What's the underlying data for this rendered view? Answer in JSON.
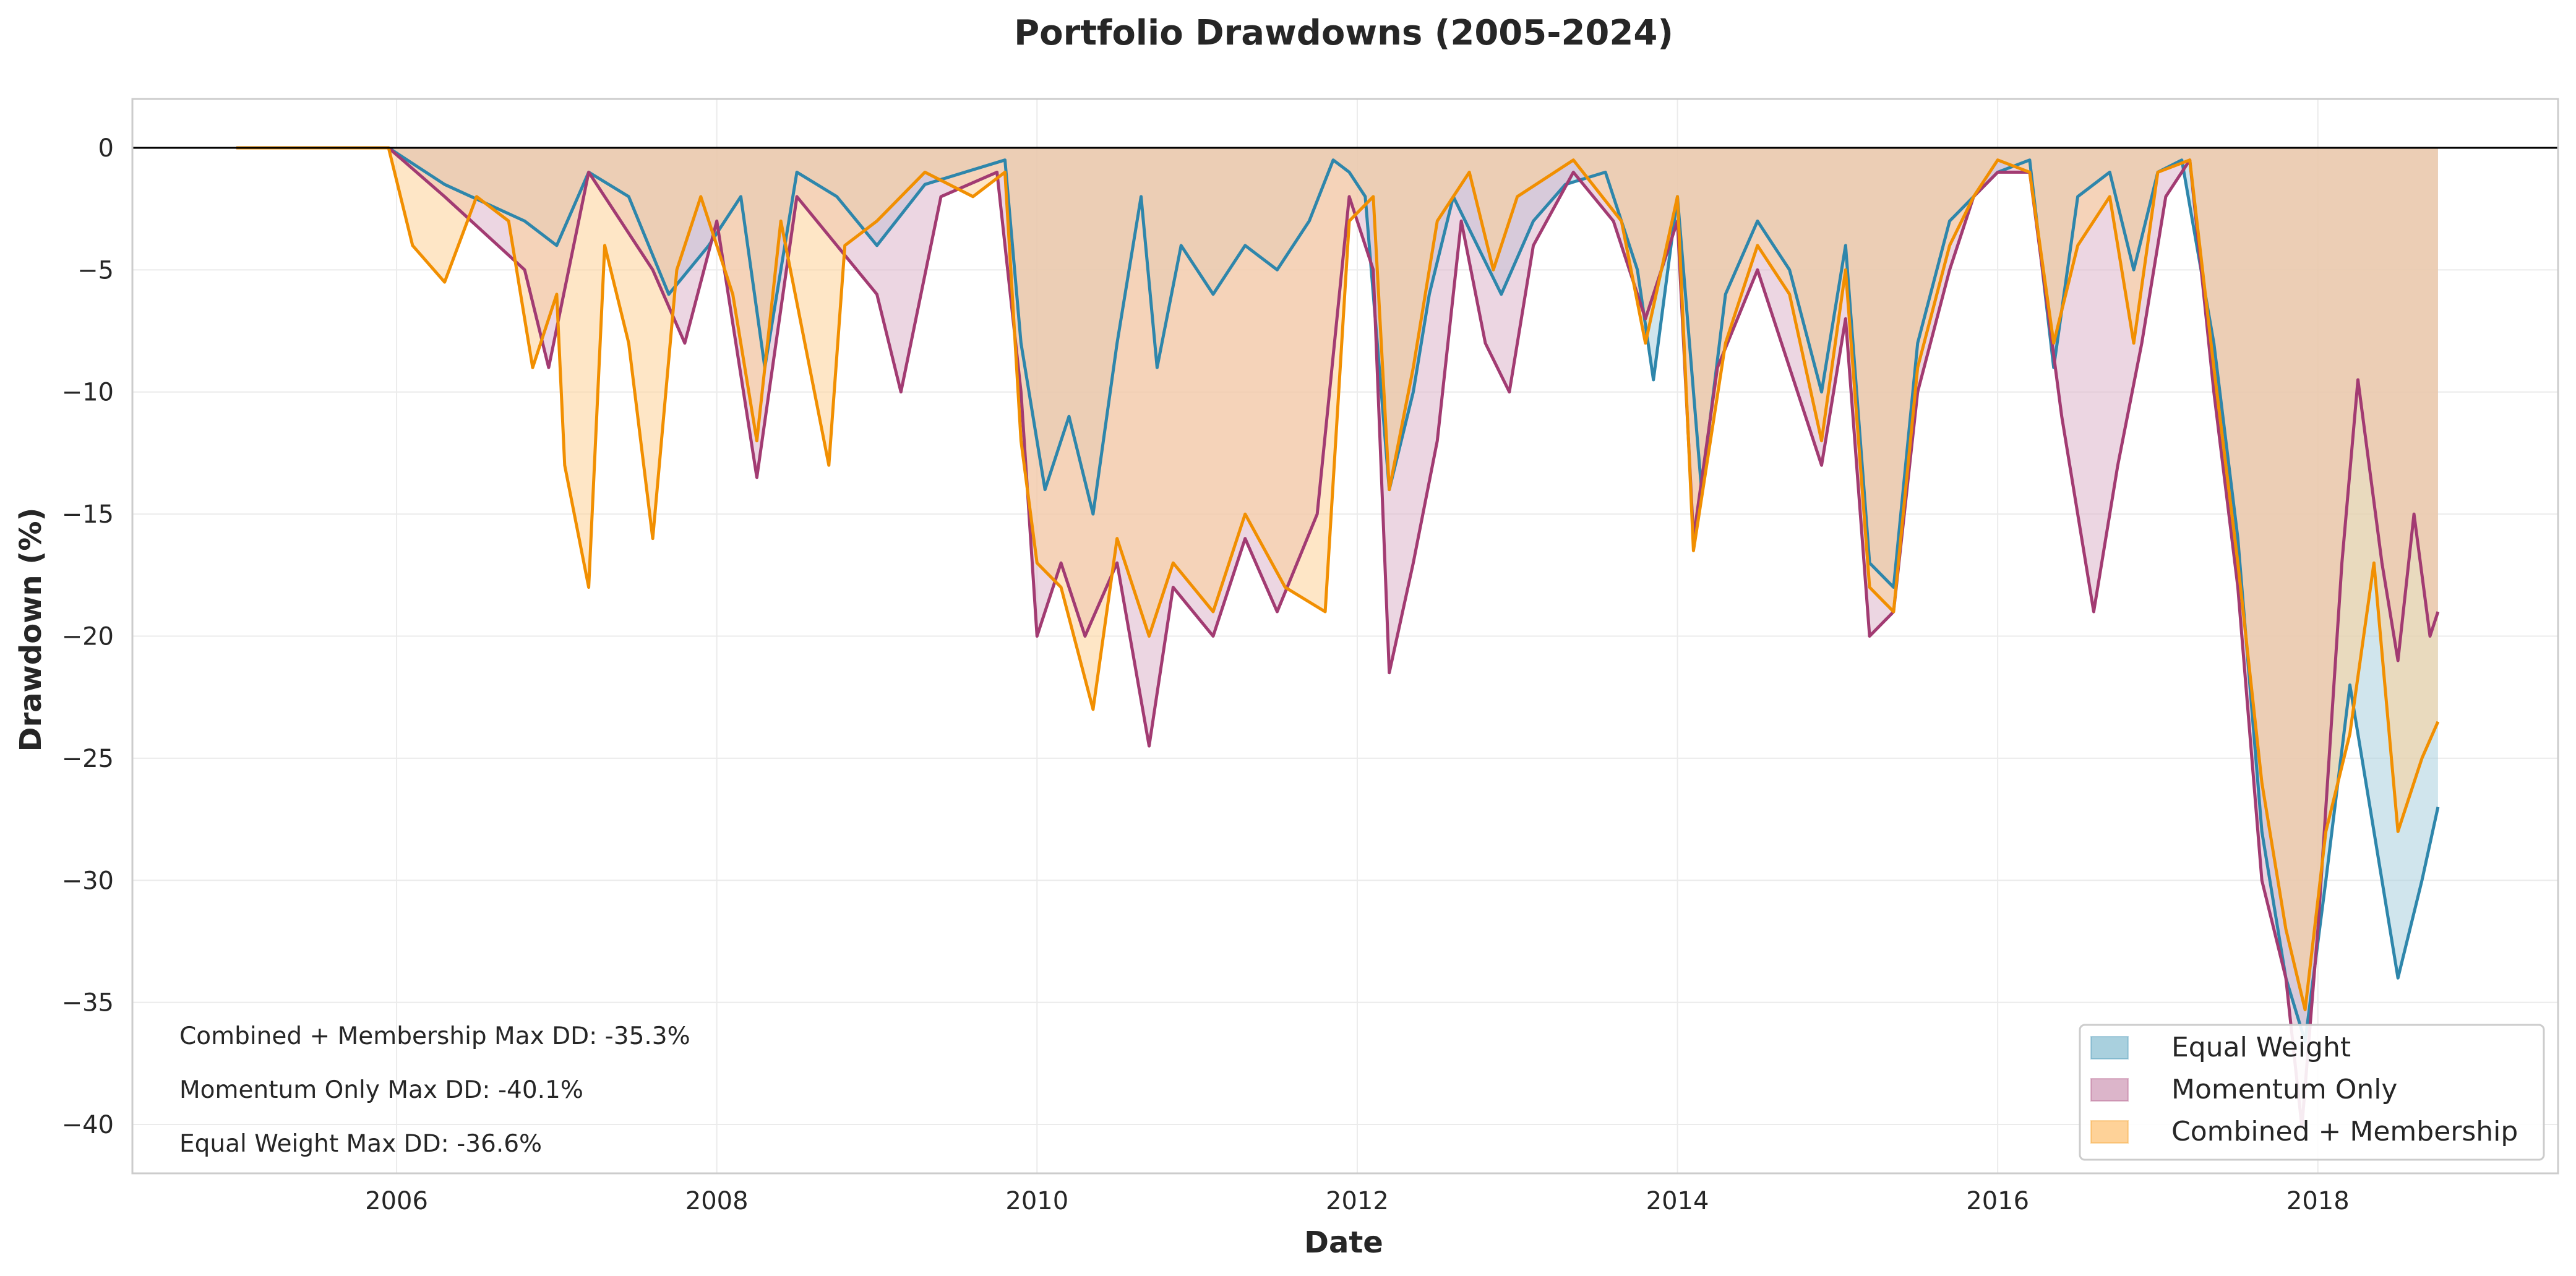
{
  "chart_data": {
    "type": "area",
    "title": "Portfolio Drawdowns (2005-2024)",
    "xlabel": "Date",
    "ylabel": "Drawdown (%)",
    "xlim": [
      2004.35,
      2019.5
    ],
    "ylim": [
      -42,
      2
    ],
    "x_ticks": [
      2006,
      2008,
      2010,
      2012,
      2014,
      2016,
      2018
    ],
    "y_ticks": [
      0,
      -5,
      -10,
      -15,
      -20,
      -25,
      -30,
      -35,
      -40
    ],
    "grid": true,
    "legend_position": "lower-right",
    "series": [
      {
        "name": "Equal Weight",
        "color": "#2e86ab",
        "fill": "#a9d0de",
        "points": [
          [
            2005.0,
            0
          ],
          [
            2005.95,
            0
          ],
          [
            2006.3,
            -1.5
          ],
          [
            2006.8,
            -3
          ],
          [
            2007.0,
            -4
          ],
          [
            2007.2,
            -1
          ],
          [
            2007.45,
            -2
          ],
          [
            2007.7,
            -6
          ],
          [
            2007.95,
            -4
          ],
          [
            2008.15,
            -2
          ],
          [
            2008.3,
            -9
          ],
          [
            2008.5,
            -1
          ],
          [
            2008.75,
            -2
          ],
          [
            2009.0,
            -4
          ],
          [
            2009.3,
            -1.5
          ],
          [
            2009.55,
            -1
          ],
          [
            2009.8,
            -0.5
          ],
          [
            2009.9,
            -8
          ],
          [
            2010.05,
            -14
          ],
          [
            2010.2,
            -11
          ],
          [
            2010.35,
            -15
          ],
          [
            2010.5,
            -8
          ],
          [
            2010.65,
            -2
          ],
          [
            2010.75,
            -9
          ],
          [
            2010.9,
            -4
          ],
          [
            2011.1,
            -6
          ],
          [
            2011.3,
            -4
          ],
          [
            2011.5,
            -5
          ],
          [
            2011.7,
            -3
          ],
          [
            2011.85,
            -0.5
          ],
          [
            2011.95,
            -1
          ],
          [
            2012.05,
            -2
          ],
          [
            2012.2,
            -14
          ],
          [
            2012.35,
            -10
          ],
          [
            2012.45,
            -6
          ],
          [
            2012.6,
            -2
          ],
          [
            2012.75,
            -4
          ],
          [
            2012.9,
            -6
          ],
          [
            2013.1,
            -3
          ],
          [
            2013.3,
            -1.5
          ],
          [
            2013.55,
            -1
          ],
          [
            2013.75,
            -5
          ],
          [
            2013.85,
            -9.5
          ],
          [
            2014.0,
            -2
          ],
          [
            2014.15,
            -14
          ],
          [
            2014.3,
            -6
          ],
          [
            2014.5,
            -3
          ],
          [
            2014.7,
            -5
          ],
          [
            2014.9,
            -10
          ],
          [
            2015.05,
            -4
          ],
          [
            2015.2,
            -17
          ],
          [
            2015.35,
            -18
          ],
          [
            2015.5,
            -8
          ],
          [
            2015.7,
            -3
          ],
          [
            2015.85,
            -2
          ],
          [
            2016.0,
            -1
          ],
          [
            2016.2,
            -0.5
          ],
          [
            2016.35,
            -9
          ],
          [
            2016.5,
            -2
          ],
          [
            2016.7,
            -1
          ],
          [
            2016.85,
            -5
          ],
          [
            2017.0,
            -1
          ],
          [
            2017.15,
            -0.5
          ],
          [
            2017.35,
            -8
          ],
          [
            2017.5,
            -16
          ],
          [
            2017.65,
            -28
          ],
          [
            2017.8,
            -34
          ],
          [
            2017.92,
            -36.6
          ],
          [
            2018.05,
            -30
          ],
          [
            2018.2,
            -22
          ],
          [
            2018.35,
            -28
          ],
          [
            2018.5,
            -34
          ],
          [
            2018.65,
            -30
          ],
          [
            2018.75,
            -27
          ]
        ]
      },
      {
        "name": "Momentum Only",
        "color": "#a23b72",
        "fill": "#dcb5ca",
        "points": [
          [
            2005.0,
            0
          ],
          [
            2005.95,
            0
          ],
          [
            2006.3,
            -2
          ],
          [
            2006.8,
            -5
          ],
          [
            2006.95,
            -9
          ],
          [
            2007.2,
            -1
          ],
          [
            2007.4,
            -3
          ],
          [
            2007.6,
            -5
          ],
          [
            2007.8,
            -8
          ],
          [
            2008.0,
            -3
          ],
          [
            2008.25,
            -13.5
          ],
          [
            2008.5,
            -2
          ],
          [
            2008.75,
            -4
          ],
          [
            2009.0,
            -6
          ],
          [
            2009.15,
            -10
          ],
          [
            2009.4,
            -2
          ],
          [
            2009.75,
            -1
          ],
          [
            2009.9,
            -10
          ],
          [
            2010.0,
            -20
          ],
          [
            2010.15,
            -17
          ],
          [
            2010.3,
            -20
          ],
          [
            2010.5,
            -17
          ],
          [
            2010.7,
            -24.5
          ],
          [
            2010.85,
            -18
          ],
          [
            2011.1,
            -20
          ],
          [
            2011.3,
            -16
          ],
          [
            2011.5,
            -19
          ],
          [
            2011.75,
            -15
          ],
          [
            2011.95,
            -2
          ],
          [
            2012.1,
            -5
          ],
          [
            2012.2,
            -21.5
          ],
          [
            2012.35,
            -17
          ],
          [
            2012.5,
            -12
          ],
          [
            2012.65,
            -3
          ],
          [
            2012.8,
            -8
          ],
          [
            2012.95,
            -10
          ],
          [
            2013.1,
            -4
          ],
          [
            2013.35,
            -1
          ],
          [
            2013.6,
            -3
          ],
          [
            2013.8,
            -7
          ],
          [
            2014.0,
            -3
          ],
          [
            2014.1,
            -16
          ],
          [
            2014.25,
            -9
          ],
          [
            2014.5,
            -5
          ],
          [
            2014.7,
            -9
          ],
          [
            2014.9,
            -13
          ],
          [
            2015.05,
            -7
          ],
          [
            2015.2,
            -20
          ],
          [
            2015.35,
            -19
          ],
          [
            2015.5,
            -10
          ],
          [
            2015.7,
            -5
          ],
          [
            2015.85,
            -2
          ],
          [
            2016.0,
            -1
          ],
          [
            2016.2,
            -1
          ],
          [
            2016.4,
            -11
          ],
          [
            2016.6,
            -19
          ],
          [
            2016.75,
            -13
          ],
          [
            2016.9,
            -8
          ],
          [
            2017.05,
            -2
          ],
          [
            2017.2,
            -0.5
          ],
          [
            2017.35,
            -10
          ],
          [
            2017.5,
            -18
          ],
          [
            2017.65,
            -30
          ],
          [
            2017.8,
            -34
          ],
          [
            2017.9,
            -40.1
          ],
          [
            2018.0,
            -32
          ],
          [
            2018.15,
            -17
          ],
          [
            2018.25,
            -9.5
          ],
          [
            2018.4,
            -17
          ],
          [
            2018.5,
            -21
          ],
          [
            2018.6,
            -15
          ],
          [
            2018.7,
            -20
          ],
          [
            2018.75,
            -19
          ]
        ]
      },
      {
        "name": "Combined + Membership",
        "color": "#f18f01",
        "fill": "#fed298",
        "points": [
          [
            2005.0,
            0
          ],
          [
            2005.95,
            0
          ],
          [
            2006.1,
            -4
          ],
          [
            2006.3,
            -5.5
          ],
          [
            2006.5,
            -2
          ],
          [
            2006.7,
            -3
          ],
          [
            2006.85,
            -9
          ],
          [
            2007.0,
            -6
          ],
          [
            2007.05,
            -13
          ],
          [
            2007.2,
            -18
          ],
          [
            2007.3,
            -4
          ],
          [
            2007.45,
            -8
          ],
          [
            2007.6,
            -16
          ],
          [
            2007.75,
            -5
          ],
          [
            2007.9,
            -2
          ],
          [
            2008.1,
            -6
          ],
          [
            2008.25,
            -12
          ],
          [
            2008.4,
            -3
          ],
          [
            2008.7,
            -13
          ],
          [
            2008.8,
            -4
          ],
          [
            2009.0,
            -3
          ],
          [
            2009.3,
            -1
          ],
          [
            2009.6,
            -2
          ],
          [
            2009.8,
            -1
          ],
          [
            2009.9,
            -12
          ],
          [
            2010.0,
            -17
          ],
          [
            2010.15,
            -18
          ],
          [
            2010.35,
            -23
          ],
          [
            2010.5,
            -16
          ],
          [
            2010.7,
            -20
          ],
          [
            2010.85,
            -17
          ],
          [
            2011.1,
            -19
          ],
          [
            2011.3,
            -15
          ],
          [
            2011.55,
            -18
          ],
          [
            2011.8,
            -19
          ],
          [
            2011.95,
            -3
          ],
          [
            2012.1,
            -2
          ],
          [
            2012.2,
            -14
          ],
          [
            2012.35,
            -9
          ],
          [
            2012.5,
            -3
          ],
          [
            2012.7,
            -1
          ],
          [
            2012.85,
            -5
          ],
          [
            2013.0,
            -2
          ],
          [
            2013.35,
            -0.5
          ],
          [
            2013.65,
            -3
          ],
          [
            2013.8,
            -8
          ],
          [
            2014.0,
            -2
          ],
          [
            2014.1,
            -16.5
          ],
          [
            2014.3,
            -8
          ],
          [
            2014.5,
            -4
          ],
          [
            2014.7,
            -6
          ],
          [
            2014.9,
            -12
          ],
          [
            2015.05,
            -5
          ],
          [
            2015.2,
            -18
          ],
          [
            2015.35,
            -19
          ],
          [
            2015.5,
            -9
          ],
          [
            2015.7,
            -4
          ],
          [
            2015.85,
            -2
          ],
          [
            2016.0,
            -0.5
          ],
          [
            2016.2,
            -1
          ],
          [
            2016.35,
            -8
          ],
          [
            2016.5,
            -4
          ],
          [
            2016.7,
            -2
          ],
          [
            2016.85,
            -8
          ],
          [
            2017.0,
            -1
          ],
          [
            2017.2,
            -0.5
          ],
          [
            2017.35,
            -9
          ],
          [
            2017.5,
            -17
          ],
          [
            2017.65,
            -26
          ],
          [
            2017.8,
            -32
          ],
          [
            2017.92,
            -35.3
          ],
          [
            2018.05,
            -28
          ],
          [
            2018.2,
            -24
          ],
          [
            2018.35,
            -17
          ],
          [
            2018.5,
            -28
          ],
          [
            2018.65,
            -25
          ],
          [
            2018.75,
            -23.5
          ]
        ]
      }
    ],
    "annotations": [
      "Combined + Membership Max DD: -35.3%",
      "Momentum Only Max DD: -40.1%",
      "Equal Weight Max DD: -36.6%"
    ]
  }
}
